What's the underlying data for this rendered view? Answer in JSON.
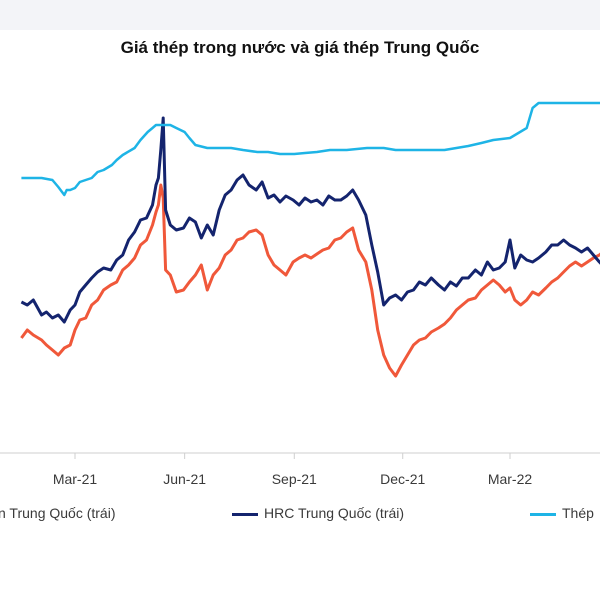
{
  "title": "Giá thép trong nước và giá thép Trung Quốc",
  "chart_data": {
    "type": "line",
    "title": "Giá thép trong nước và giá thép Trung Quốc",
    "xlabel": "",
    "ylabel": "",
    "x_ticks": [
      "Mar-21",
      "Jun-21",
      "Sep-21",
      "Dec-21",
      "Mar-22"
    ],
    "grid": false,
    "legend_position": "bottom",
    "series": [
      {
        "name": "... Trung Quốc (trái)",
        "legend_label": "n Trung Quốc (trái)",
        "color": "#f0583a",
        "points": [
          [
            "2021-01-15",
            338
          ],
          [
            "2021-01-20",
            330
          ],
          [
            "2021-01-25",
            335
          ],
          [
            "2021-02-01",
            340
          ],
          [
            "2021-02-05",
            345
          ],
          [
            "2021-02-10",
            350
          ],
          [
            "2021-02-15",
            355
          ],
          [
            "2021-02-20",
            348
          ],
          [
            "2021-02-25",
            345
          ],
          [
            "2021-03-01",
            330
          ],
          [
            "2021-03-05",
            320
          ],
          [
            "2021-03-10",
            318
          ],
          [
            "2021-03-15",
            305
          ],
          [
            "2021-03-20",
            300
          ],
          [
            "2021-03-25",
            290
          ],
          [
            "2021-03-31",
            285
          ],
          [
            "2021-04-05",
            282
          ],
          [
            "2021-04-10",
            270
          ],
          [
            "2021-04-15",
            265
          ],
          [
            "2021-04-20",
            258
          ],
          [
            "2021-04-25",
            245
          ],
          [
            "2021-04-30",
            240
          ],
          [
            "2021-05-05",
            225
          ],
          [
            "2021-05-08",
            212
          ],
          [
            "2021-05-10",
            205
          ],
          [
            "2021-05-12",
            185
          ],
          [
            "2021-05-14",
            198
          ],
          [
            "2021-05-16",
            270
          ],
          [
            "2021-05-20",
            275
          ],
          [
            "2021-05-25",
            292
          ],
          [
            "2021-05-31",
            290
          ],
          [
            "2021-06-05",
            282
          ],
          [
            "2021-06-10",
            275
          ],
          [
            "2021-06-15",
            265
          ],
          [
            "2021-06-20",
            290
          ],
          [
            "2021-06-25",
            275
          ],
          [
            "2021-06-30",
            268
          ],
          [
            "2021-07-05",
            255
          ],
          [
            "2021-07-10",
            250
          ],
          [
            "2021-07-15",
            240
          ],
          [
            "2021-07-20",
            238
          ],
          [
            "2021-07-25",
            232
          ],
          [
            "2021-07-31",
            230
          ],
          [
            "2021-08-05",
            235
          ],
          [
            "2021-08-10",
            255
          ],
          [
            "2021-08-15",
            265
          ],
          [
            "2021-08-20",
            270
          ],
          [
            "2021-08-25",
            275
          ],
          [
            "2021-08-31",
            262
          ],
          [
            "2021-09-05",
            258
          ],
          [
            "2021-09-10",
            255
          ],
          [
            "2021-09-15",
            258
          ],
          [
            "2021-09-20",
            254
          ],
          [
            "2021-09-25",
            250
          ],
          [
            "2021-09-30",
            248
          ],
          [
            "2021-10-05",
            240
          ],
          [
            "2021-10-10",
            238
          ],
          [
            "2021-10-15",
            232
          ],
          [
            "2021-10-20",
            228
          ],
          [
            "2021-10-25",
            250
          ],
          [
            "2021-10-31",
            262
          ],
          [
            "2021-11-05",
            290
          ],
          [
            "2021-11-10",
            330
          ],
          [
            "2021-11-15",
            355
          ],
          [
            "2021-11-20",
            368
          ],
          [
            "2021-11-25",
            376
          ],
          [
            "2021-11-30",
            365
          ],
          [
            "2021-12-05",
            355
          ],
          [
            "2021-12-10",
            345
          ],
          [
            "2021-12-15",
            340
          ],
          [
            "2021-12-20",
            338
          ],
          [
            "2021-12-25",
            332
          ],
          [
            "2021-12-31",
            328
          ],
          [
            "2022-01-05",
            324
          ],
          [
            "2022-01-10",
            318
          ],
          [
            "2022-01-15",
            310
          ],
          [
            "2022-01-20",
            305
          ],
          [
            "2022-01-25",
            300
          ],
          [
            "2022-01-31",
            298
          ],
          [
            "2022-02-05",
            290
          ],
          [
            "2022-02-10",
            285
          ],
          [
            "2022-02-15",
            280
          ],
          [
            "2022-02-20",
            285
          ],
          [
            "2022-02-25",
            292
          ],
          [
            "2022-03-01",
            288
          ],
          [
            "2022-03-05",
            300
          ],
          [
            "2022-03-10",
            305
          ],
          [
            "2022-03-15",
            300
          ],
          [
            "2022-03-20",
            292
          ],
          [
            "2022-03-25",
            295
          ],
          [
            "2022-03-31",
            288
          ],
          [
            "2022-04-05",
            282
          ],
          [
            "2022-04-10",
            278
          ],
          [
            "2022-04-15",
            272
          ],
          [
            "2022-04-20",
            266
          ],
          [
            "2022-04-25",
            262
          ],
          [
            "2022-04-30",
            266
          ],
          [
            "2022-05-05",
            262
          ],
          [
            "2022-05-10",
            258
          ],
          [
            "2022-05-15",
            255
          ],
          [
            "2022-05-20",
            250
          ]
        ]
      },
      {
        "name": "HRC Trung Quốc (trái)",
        "legend_label": "HRC Trung Quốc (trái)",
        "color": "#14246e",
        "points": [
          [
            "2021-01-15",
            302
          ],
          [
            "2021-01-20",
            305
          ],
          [
            "2021-01-25",
            300
          ],
          [
            "2021-02-01",
            315
          ],
          [
            "2021-02-05",
            312
          ],
          [
            "2021-02-10",
            318
          ],
          [
            "2021-02-15",
            315
          ],
          [
            "2021-02-20",
            322
          ],
          [
            "2021-02-25",
            310
          ],
          [
            "2021-03-01",
            305
          ],
          [
            "2021-03-05",
            292
          ],
          [
            "2021-03-10",
            285
          ],
          [
            "2021-03-15",
            278
          ],
          [
            "2021-03-20",
            272
          ],
          [
            "2021-03-25",
            268
          ],
          [
            "2021-03-31",
            270
          ],
          [
            "2021-04-05",
            260
          ],
          [
            "2021-04-10",
            255
          ],
          [
            "2021-04-15",
            240
          ],
          [
            "2021-04-20",
            232
          ],
          [
            "2021-04-25",
            220
          ],
          [
            "2021-04-30",
            218
          ],
          [
            "2021-05-05",
            205
          ],
          [
            "2021-05-08",
            185
          ],
          [
            "2021-05-10",
            178
          ],
          [
            "2021-05-12",
            150
          ],
          [
            "2021-05-14",
            118
          ],
          [
            "2021-05-16",
            210
          ],
          [
            "2021-05-20",
            225
          ],
          [
            "2021-05-25",
            230
          ],
          [
            "2021-05-31",
            228
          ],
          [
            "2021-06-05",
            218
          ],
          [
            "2021-06-10",
            222
          ],
          [
            "2021-06-15",
            238
          ],
          [
            "2021-06-20",
            225
          ],
          [
            "2021-06-25",
            235
          ],
          [
            "2021-06-30",
            210
          ],
          [
            "2021-07-05",
            195
          ],
          [
            "2021-07-10",
            190
          ],
          [
            "2021-07-15",
            180
          ],
          [
            "2021-07-20",
            175
          ],
          [
            "2021-07-25",
            185
          ],
          [
            "2021-07-31",
            190
          ],
          [
            "2021-08-05",
            182
          ],
          [
            "2021-08-10",
            198
          ],
          [
            "2021-08-15",
            195
          ],
          [
            "2021-08-20",
            202
          ],
          [
            "2021-08-25",
            196
          ],
          [
            "2021-08-31",
            200
          ],
          [
            "2021-09-05",
            205
          ],
          [
            "2021-09-10",
            198
          ],
          [
            "2021-09-15",
            202
          ],
          [
            "2021-09-20",
            200
          ],
          [
            "2021-09-25",
            205
          ],
          [
            "2021-09-30",
            196
          ],
          [
            "2021-10-05",
            200
          ],
          [
            "2021-10-10",
            200
          ],
          [
            "2021-10-15",
            196
          ],
          [
            "2021-10-20",
            190
          ],
          [
            "2021-10-25",
            200
          ],
          [
            "2021-10-31",
            215
          ],
          [
            "2021-11-05",
            245
          ],
          [
            "2021-11-10",
            272
          ],
          [
            "2021-11-15",
            305
          ],
          [
            "2021-11-20",
            298
          ],
          [
            "2021-11-25",
            295
          ],
          [
            "2021-11-30",
            300
          ],
          [
            "2021-12-05",
            292
          ],
          [
            "2021-12-10",
            290
          ],
          [
            "2021-12-15",
            282
          ],
          [
            "2021-12-20",
            285
          ],
          [
            "2021-12-25",
            278
          ],
          [
            "2021-12-31",
            285
          ],
          [
            "2022-01-05",
            290
          ],
          [
            "2022-01-10",
            282
          ],
          [
            "2022-01-15",
            286
          ],
          [
            "2022-01-20",
            278
          ],
          [
            "2022-01-25",
            278
          ],
          [
            "2022-01-31",
            270
          ],
          [
            "2022-02-05",
            275
          ],
          [
            "2022-02-10",
            262
          ],
          [
            "2022-02-15",
            270
          ],
          [
            "2022-02-20",
            268
          ],
          [
            "2022-02-25",
            262
          ],
          [
            "2022-03-01",
            240
          ],
          [
            "2022-03-05",
            268
          ],
          [
            "2022-03-10",
            255
          ],
          [
            "2022-03-15",
            260
          ],
          [
            "2022-03-20",
            262
          ],
          [
            "2022-03-25",
            258
          ],
          [
            "2022-03-31",
            252
          ],
          [
            "2022-04-05",
            245
          ],
          [
            "2022-04-10",
            245
          ],
          [
            "2022-04-15",
            240
          ],
          [
            "2022-04-20",
            245
          ],
          [
            "2022-04-25",
            248
          ],
          [
            "2022-04-30",
            252
          ],
          [
            "2022-05-05",
            248
          ],
          [
            "2022-05-10",
            255
          ],
          [
            "2022-05-15",
            262
          ],
          [
            "2022-05-20",
            268
          ]
        ]
      },
      {
        "name": "Thép... (phải)",
        "legend_label": "Thép",
        "color": "#1eb4e6",
        "points": [
          [
            "2021-01-15",
            178
          ],
          [
            "2021-02-01",
            178
          ],
          [
            "2021-02-10",
            180
          ],
          [
            "2021-02-15",
            187
          ],
          [
            "2021-02-20",
            195
          ],
          [
            "2021-02-22",
            190
          ],
          [
            "2021-02-25",
            190
          ],
          [
            "2021-03-01",
            188
          ],
          [
            "2021-03-05",
            182
          ],
          [
            "2021-03-10",
            180
          ],
          [
            "2021-03-15",
            178
          ],
          [
            "2021-03-20",
            172
          ],
          [
            "2021-03-25",
            170
          ],
          [
            "2021-04-01",
            165
          ],
          [
            "2021-04-05",
            160
          ],
          [
            "2021-04-10",
            155
          ],
          [
            "2021-04-20",
            148
          ],
          [
            "2021-04-25",
            140
          ],
          [
            "2021-05-01",
            132
          ],
          [
            "2021-05-05",
            128
          ],
          [
            "2021-05-08",
            125
          ],
          [
            "2021-05-15",
            125
          ],
          [
            "2021-05-20",
            125
          ],
          [
            "2021-05-25",
            128
          ],
          [
            "2021-06-01",
            132
          ],
          [
            "2021-06-05",
            138
          ],
          [
            "2021-06-10",
            145
          ],
          [
            "2021-06-20",
            148
          ],
          [
            "2021-07-01",
            148
          ],
          [
            "2021-07-10",
            148
          ],
          [
            "2021-07-20",
            150
          ],
          [
            "2021-08-01",
            152
          ],
          [
            "2021-08-10",
            152
          ],
          [
            "2021-08-20",
            154
          ],
          [
            "2021-09-01",
            154
          ],
          [
            "2021-09-10",
            153
          ],
          [
            "2021-09-20",
            152
          ],
          [
            "2021-10-01",
            150
          ],
          [
            "2021-10-15",
            150
          ],
          [
            "2021-11-01",
            148
          ],
          [
            "2021-11-15",
            148
          ],
          [
            "2021-11-25",
            150
          ],
          [
            "2021-12-05",
            150
          ],
          [
            "2021-12-15",
            150
          ],
          [
            "2021-12-25",
            150
          ],
          [
            "2022-01-05",
            150
          ],
          [
            "2022-01-15",
            148
          ],
          [
            "2022-01-25",
            146
          ],
          [
            "2022-02-05",
            143
          ],
          [
            "2022-02-15",
            140
          ],
          [
            "2022-03-01",
            138
          ],
          [
            "2022-03-15",
            128
          ],
          [
            "2022-03-20",
            108
          ],
          [
            "2022-03-25",
            103
          ],
          [
            "2022-04-01",
            103
          ],
          [
            "2022-04-15",
            103
          ],
          [
            "2022-05-01",
            103
          ],
          [
            "2022-05-20",
            103
          ]
        ]
      }
    ]
  }
}
